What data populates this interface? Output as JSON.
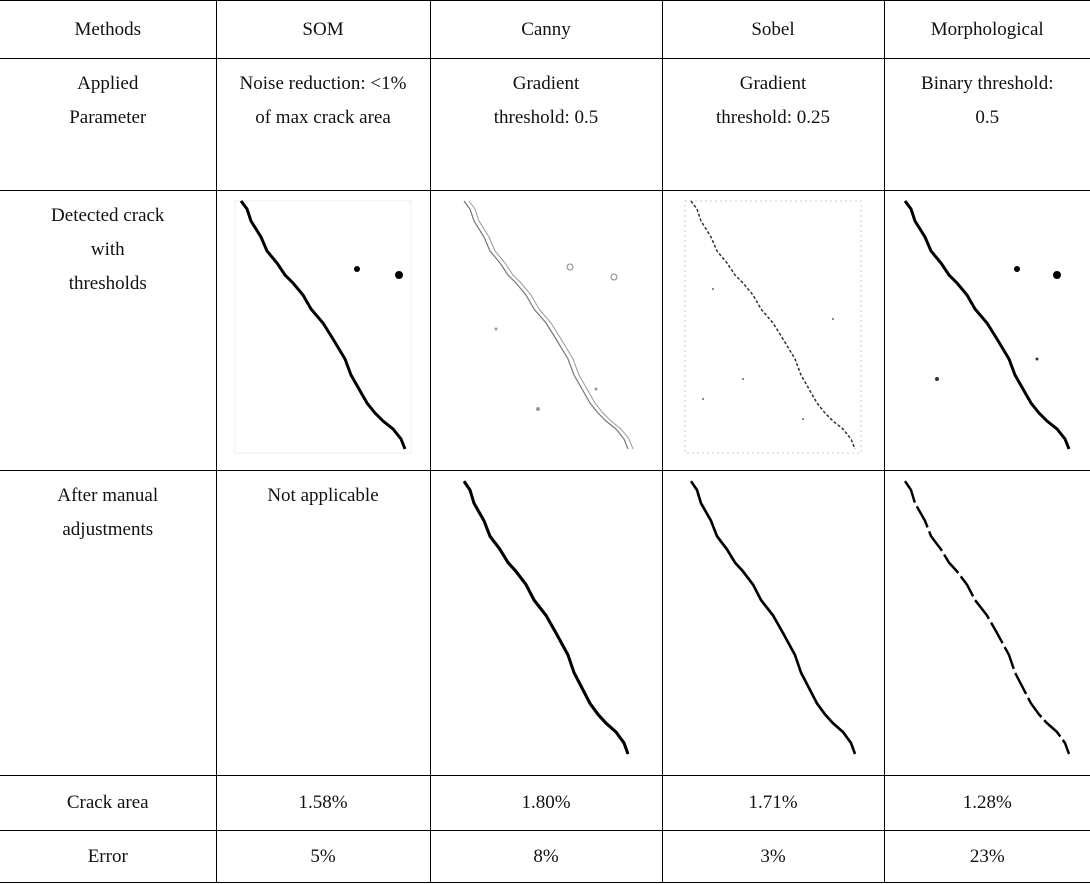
{
  "table": {
    "header": [
      "Methods",
      "SOM",
      "Canny",
      "Sobel",
      "Morphological"
    ],
    "rows": [
      [
        [
          "Applied",
          "Parameter"
        ],
        [
          "Noise reduction: <1%",
          "of max crack area"
        ],
        [
          "Gradient",
          "threshold: 0.5"
        ],
        [
          "Gradient",
          "threshold: 0.25"
        ],
        [
          "Binary threshold:",
          "0.5"
        ]
      ],
      [
        [
          "Detected crack",
          "with",
          "thresholds"
        ]
      ],
      [
        [
          "After manual",
          "adjustments"
        ],
        [
          "Not applicable"
        ]
      ],
      [
        [
          "Crack area"
        ],
        [
          "1.58%"
        ],
        [
          "1.80%"
        ],
        [
          "1.71%"
        ],
        [
          "1.28%"
        ]
      ],
      [
        [
          "Error"
        ],
        [
          "5%"
        ],
        [
          "8%"
        ],
        [
          "3%"
        ],
        [
          "23%"
        ]
      ]
    ]
  }
}
